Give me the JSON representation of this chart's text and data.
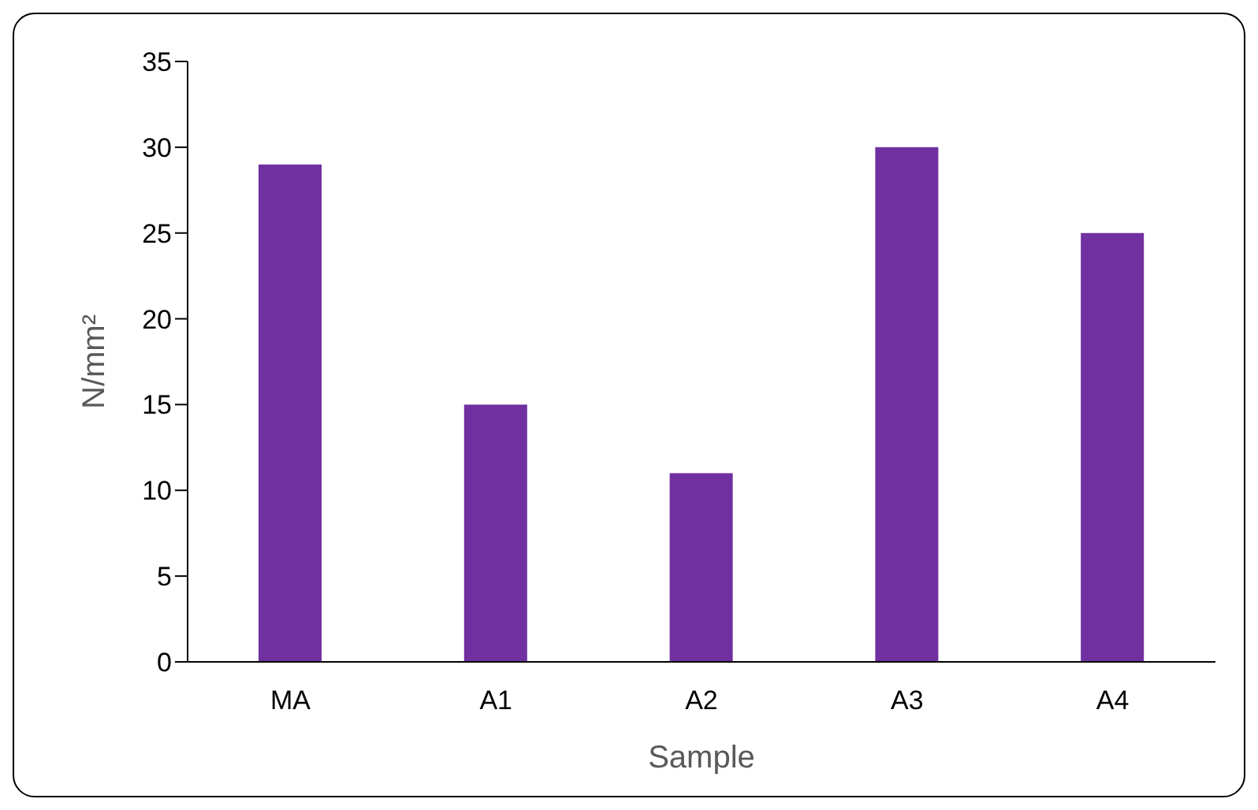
{
  "chart_data": {
    "type": "bar",
    "xlabel": "Sample",
    "ylabel": "N/mm²",
    "categories": [
      "MA",
      "A1",
      "A2",
      "A3",
      "A4"
    ],
    "values": [
      29,
      15,
      11,
      30,
      25
    ],
    "color": "#7030a0",
    "ylim": [
      0,
      35
    ],
    "yticks": [
      0,
      5,
      10,
      15,
      20,
      25,
      30,
      35
    ],
    "grid": false,
    "legend": false
  }
}
